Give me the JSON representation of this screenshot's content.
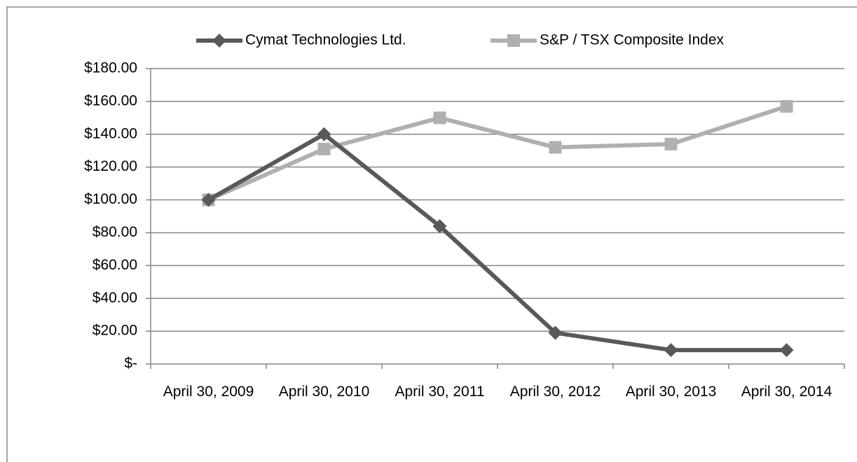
{
  "chart_data": {
    "type": "line",
    "categories": [
      "April 30, 2009",
      "April 30, 2010",
      "April 30, 2011",
      "April 30, 2012",
      "April 30, 2013",
      "April 30, 2014"
    ],
    "series": [
      {
        "name": "Cymat Technologies Ltd.",
        "color": "#595959",
        "marker": "diamond",
        "values": [
          100,
          140,
          84,
          19,
          8.5,
          8.5
        ]
      },
      {
        "name": "S&P / TSX Composite Index",
        "color": "#b0b0b0",
        "marker": "square",
        "values": [
          100,
          131,
          150,
          132,
          134,
          157
        ]
      }
    ],
    "ylim": [
      0,
      180
    ],
    "yticks": [
      {
        "value": 0,
        "label": "$-"
      },
      {
        "value": 20,
        "label": "$20.00"
      },
      {
        "value": 40,
        "label": "$40.00"
      },
      {
        "value": 60,
        "label": "$60.00"
      },
      {
        "value": 80,
        "label": "$80.00"
      },
      {
        "value": 100,
        "label": "$100.00"
      },
      {
        "value": 120,
        "label": "$120.00"
      },
      {
        "value": 140,
        "label": "$140.00"
      },
      {
        "value": 160,
        "label": "$160.00"
      },
      {
        "value": 180,
        "label": "$180.00"
      }
    ],
    "grid": true,
    "legend": "top"
  }
}
